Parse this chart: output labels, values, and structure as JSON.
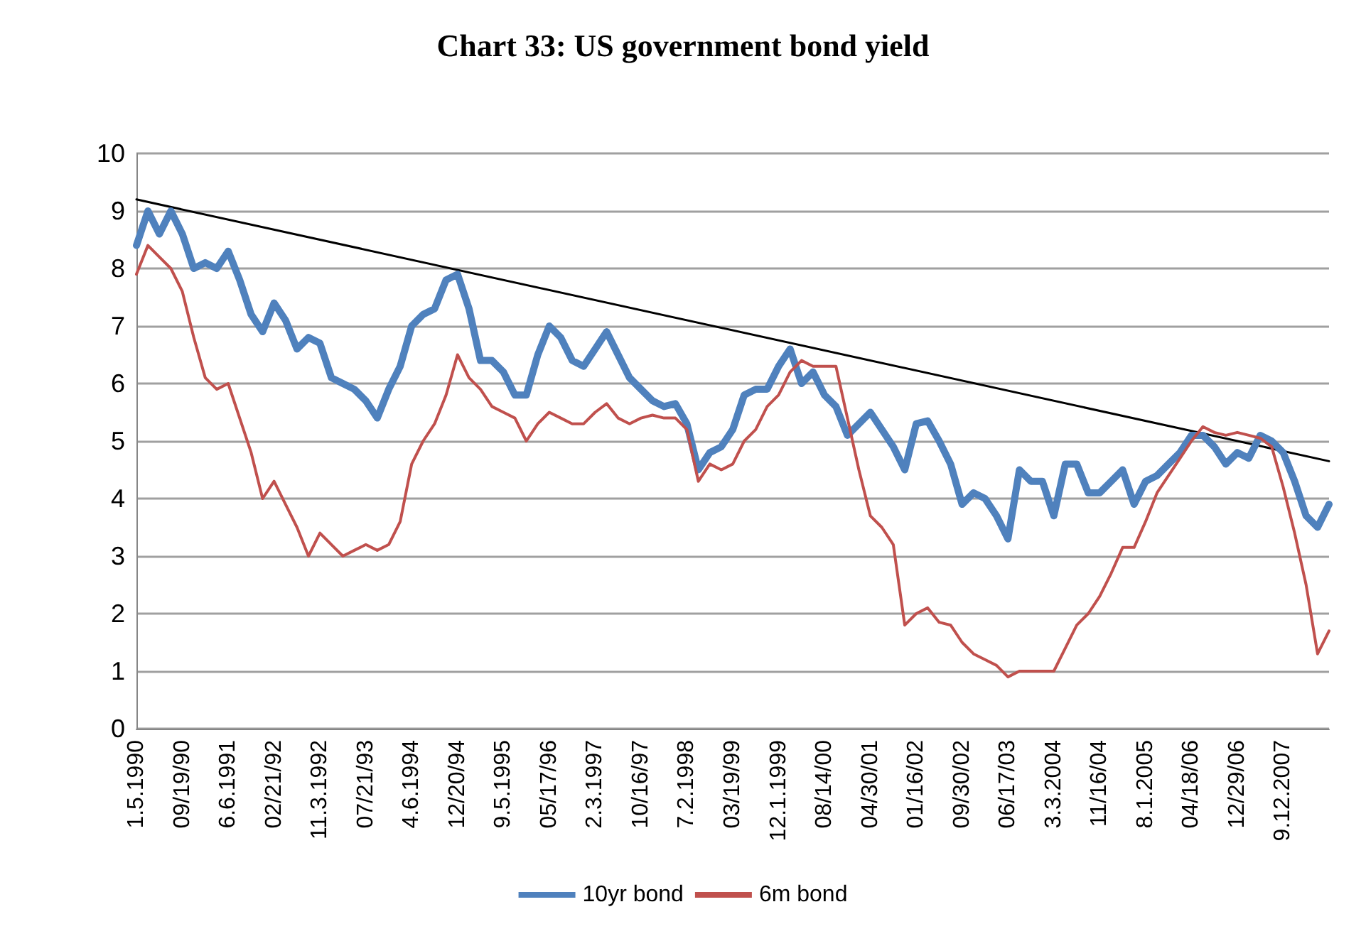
{
  "chart_data": {
    "type": "line",
    "title": "Chart 33: US government bond yield",
    "categories": [
      "1.5.1990",
      null,
      null,
      null,
      "09/19/90",
      null,
      null,
      null,
      "6.6.1991",
      null,
      null,
      null,
      "02/21/92",
      null,
      null,
      null,
      "11.3.1992",
      null,
      null,
      null,
      "07/21/93",
      null,
      null,
      null,
      "4.6.1994",
      null,
      null,
      null,
      "12/20/94",
      null,
      null,
      null,
      "9.5.1995",
      null,
      null,
      null,
      "05/17/96",
      null,
      null,
      null,
      "2.3.1997",
      null,
      null,
      null,
      "10/16/97",
      null,
      null,
      null,
      "7.2.1998",
      null,
      null,
      null,
      "03/19/99",
      null,
      null,
      null,
      "12.1.1999",
      null,
      null,
      null,
      "08/14/00",
      null,
      null,
      null,
      "04/30/01",
      null,
      null,
      null,
      "01/16/02",
      null,
      null,
      null,
      "09/30/02",
      null,
      null,
      null,
      "06/17/03",
      null,
      null,
      null,
      "3.3.2004",
      null,
      null,
      null,
      "11/16/04",
      null,
      null,
      null,
      "8.1.2005",
      null,
      null,
      null,
      "04/18/06",
      null,
      null,
      null,
      "12/29/06",
      null,
      null,
      null,
      "9.12.2007",
      null,
      null,
      null,
      null
    ],
    "series": [
      {
        "name": "10yr bond",
        "color": "#4f81bd",
        "values": [
          8.4,
          9.0,
          8.6,
          9.0,
          8.6,
          8.0,
          8.1,
          8.0,
          8.3,
          7.8,
          7.2,
          6.9,
          7.4,
          7.1,
          6.6,
          6.8,
          6.7,
          6.1,
          6.0,
          5.9,
          5.7,
          5.4,
          5.9,
          6.3,
          7.0,
          7.2,
          7.3,
          7.8,
          7.9,
          7.3,
          6.4,
          6.4,
          6.2,
          5.8,
          5.8,
          6.5,
          7.0,
          6.8,
          6.4,
          6.3,
          6.6,
          6.9,
          6.5,
          6.1,
          5.9,
          5.7,
          5.6,
          5.65,
          5.3,
          4.5,
          4.8,
          4.9,
          5.2,
          5.8,
          5.9,
          5.9,
          6.3,
          6.6,
          6.0,
          6.2,
          5.8,
          5.6,
          5.1,
          5.3,
          5.5,
          5.2,
          4.9,
          4.5,
          5.3,
          5.35,
          5.0,
          4.6,
          3.9,
          4.1,
          4.0,
          3.7,
          3.3,
          4.5,
          4.3,
          4.3,
          3.7,
          4.6,
          4.6,
          4.1,
          4.1,
          4.3,
          4.5,
          3.9,
          4.3,
          4.4,
          4.6,
          4.8,
          5.1,
          5.1,
          4.9,
          4.6,
          4.8,
          4.7,
          5.1,
          5.0,
          4.8,
          4.3,
          3.7,
          3.5,
          3.9
        ]
      },
      {
        "name": "6m bond",
        "color": "#c0504d",
        "values": [
          7.9,
          8.4,
          8.2,
          8.0,
          7.6,
          6.8,
          6.1,
          5.9,
          6.0,
          5.4,
          4.8,
          4.0,
          4.3,
          3.9,
          3.5,
          3.0,
          3.4,
          3.2,
          3.0,
          3.1,
          3.2,
          3.1,
          3.2,
          3.6,
          4.6,
          5.0,
          5.3,
          5.8,
          6.5,
          6.1,
          5.9,
          5.6,
          5.5,
          5.4,
          5.0,
          5.3,
          5.5,
          5.4,
          5.3,
          5.3,
          5.5,
          5.65,
          5.4,
          5.3,
          5.4,
          5.45,
          5.4,
          5.4,
          5.2,
          4.3,
          4.6,
          4.5,
          4.6,
          5.0,
          5.2,
          5.6,
          5.8,
          6.2,
          6.4,
          6.3,
          6.3,
          6.3,
          5.4,
          4.5,
          3.7,
          3.5,
          3.2,
          1.8,
          2.0,
          2.1,
          1.85,
          1.8,
          1.5,
          1.3,
          1.2,
          1.1,
          0.9,
          1.0,
          1.0,
          1.0,
          1.0,
          1.4,
          1.8,
          2.0,
          2.3,
          2.7,
          3.15,
          3.15,
          3.6,
          4.1,
          4.4,
          4.7,
          5.0,
          5.25,
          5.15,
          5.1,
          5.15,
          5.1,
          5.05,
          4.9,
          4.2,
          3.4,
          2.5,
          1.3,
          1.7
        ]
      },
      {
        "type": "line",
        "color": "#000000",
        "values": [
          9.2,
          null,
          null,
          null,
          null,
          null,
          null,
          null,
          null,
          null,
          null,
          null,
          null,
          null,
          null,
          null,
          null,
          null,
          null,
          null,
          null,
          null,
          null,
          null,
          null,
          null,
          null,
          null,
          null,
          null,
          null,
          null,
          null,
          null,
          null,
          null,
          null,
          null,
          null,
          null,
          null,
          null,
          null,
          null,
          null,
          null,
          null,
          null,
          null,
          null,
          null,
          null,
          null,
          null,
          null,
          null,
          null,
          null,
          null,
          null,
          null,
          null,
          null,
          null,
          null,
          null,
          null,
          null,
          null,
          null,
          null,
          null,
          null,
          null,
          null,
          null,
          null,
          null,
          null,
          null,
          null,
          null,
          null,
          null,
          null,
          null,
          null,
          null,
          null,
          null,
          null,
          null,
          null,
          null,
          null,
          null,
          null,
          null,
          null,
          null,
          null,
          null,
          null,
          null,
          4.65
        ]
      }
    ],
    "ylim": [
      0,
      10
    ],
    "yticks": [
      0,
      1,
      2,
      3,
      4,
      5,
      6,
      7,
      8,
      9,
      10
    ],
    "grid": "y",
    "legend": "bottom",
    "marker": "none",
    "line_style": "solid"
  }
}
